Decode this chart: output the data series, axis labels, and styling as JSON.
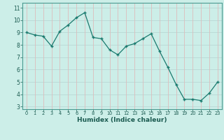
{
  "x": [
    0,
    1,
    2,
    3,
    4,
    5,
    6,
    7,
    8,
    9,
    10,
    11,
    12,
    13,
    14,
    15,
    16,
    17,
    18,
    19,
    20,
    21,
    22,
    23
  ],
  "y": [
    9.0,
    8.8,
    8.7,
    7.9,
    9.1,
    9.6,
    10.2,
    10.6,
    8.6,
    8.5,
    7.6,
    7.2,
    7.9,
    8.1,
    8.5,
    8.9,
    7.5,
    6.2,
    4.8,
    3.6,
    3.6,
    3.5,
    4.1,
    5.0
  ],
  "xlabel": "Humidex (Indice chaleur)",
  "xlim": [
    -0.5,
    23.5
  ],
  "ylim": [
    2.8,
    11.4
  ],
  "yticks": [
    3,
    4,
    5,
    6,
    7,
    8,
    9,
    10,
    11
  ],
  "xticks": [
    0,
    1,
    2,
    3,
    4,
    5,
    6,
    7,
    8,
    9,
    10,
    11,
    12,
    13,
    14,
    15,
    16,
    17,
    18,
    19,
    20,
    21,
    22,
    23
  ],
  "bg_color": "#cceee8",
  "line_color": "#1a7a6e",
  "hgrid_color": "#b8d8d4",
  "vgrid_color": "#ddbcbc"
}
